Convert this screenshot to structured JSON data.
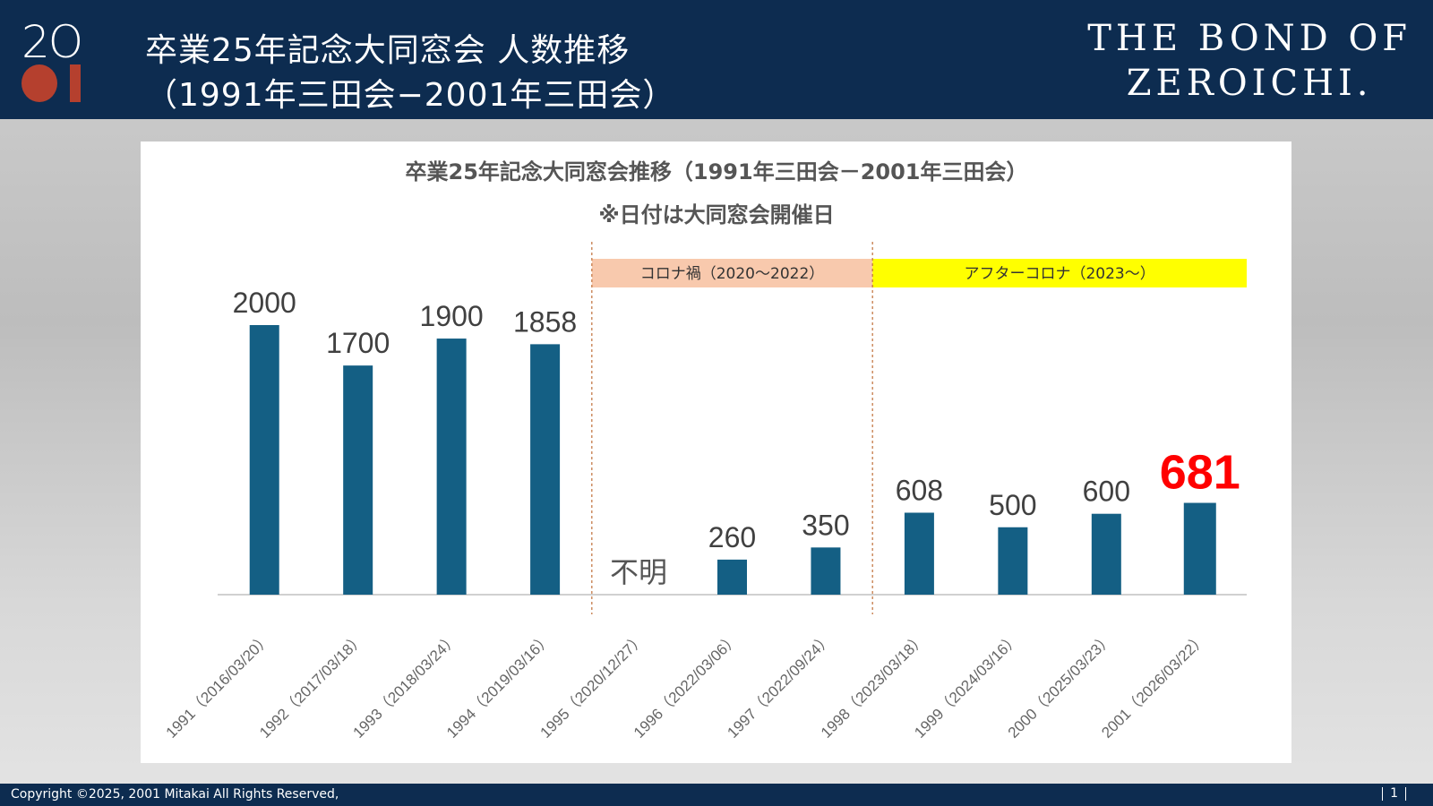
{
  "header": {
    "logo_text": "2001",
    "title_line1": "卒業25年記念大同窓会 人数推移",
    "title_line2": "（1991年三田会−2001年三田会）",
    "brand_line1": "THE BOND OF",
    "brand_line2": "ZEROICHI."
  },
  "footer": {
    "copyright": "Copyright ©2025, 2001 Mitakai All Rights Reserved,",
    "page": "1"
  },
  "chart_data": {
    "type": "bar",
    "title": "卒業25年記念大同窓会推移（1991年三田会－2001年三田会）",
    "subtitle": "※日付は大同窓会開催日",
    "categories": [
      "1991（2016/03/20）",
      "1992（2017/03/18）",
      "1993（2018/03/24）",
      "1994（2019/03/16）",
      "1995（2020/12/27）",
      "1996（2022/03/06）",
      "1997（2022/09/24）",
      "1998（2023/03/18）",
      "1999（2024/03/16）",
      "2000（2025/03/23）",
      "2001（2026/03/22）"
    ],
    "values": [
      2000,
      1700,
      1900,
      1858,
      null,
      260,
      350,
      608,
      500,
      600,
      681
    ],
    "labels": [
      "2000",
      "1700",
      "1900",
      "1858",
      "不明",
      "260",
      "350",
      "608",
      "500",
      "600",
      "681"
    ],
    "highlight_index": 10,
    "ylim": [
      0,
      2000
    ],
    "bar_color": "#145f84",
    "highlight_label_color": "#ff0000",
    "annotations": [
      {
        "text": "コロナ禍（2020～2022）",
        "from": 4,
        "to": 6,
        "color": "#f8c9ad"
      },
      {
        "text": "アフターコロナ（2023～）",
        "from": 7,
        "to": 10,
        "color": "#ffff00"
      }
    ]
  }
}
